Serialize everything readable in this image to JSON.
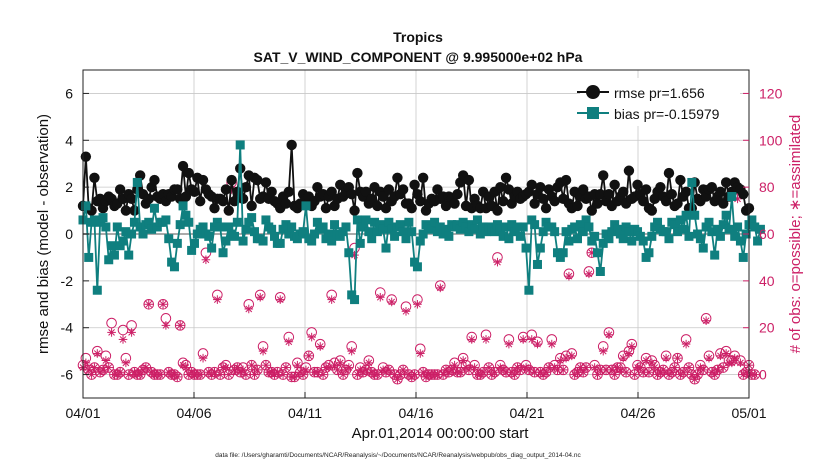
{
  "chart_data": {
    "type": "line",
    "title": "Tropics",
    "subtitle": "SAT_V_WIND_COMPONENT @ 9.995000e+02 hPa",
    "xlabel": "Apr.01,2014 00:00:00 start",
    "ylabel_left": "rmse and bias (model - observation)",
    "ylabel_right": "# of obs: o=possible; ∗=assimilated",
    "footnote": "data file: /Users/gharamti/Documents/NCAR/Reanalysis/~/Documents/NCAR/Reanalysis/webpub/obs_diag_output_2014-04.nc",
    "x_tick_labels": [
      "04/01",
      "04/06",
      "04/11",
      "04/16",
      "04/21",
      "04/26",
      "05/01"
    ],
    "x_tick_days": [
      0,
      5,
      10,
      15,
      20,
      25,
      30
    ],
    "xlim": [
      0,
      30
    ],
    "ylim_left": [
      -7,
      7
    ],
    "yticks_left": [
      -6,
      -4,
      -2,
      0,
      2,
      4,
      6
    ],
    "ylim_right": [
      -10,
      130
    ],
    "yticks_right": [
      0,
      20,
      40,
      60,
      80,
      100,
      120
    ],
    "grid": true,
    "legend_position": "top-right",
    "colors": {
      "rmse": "#111111",
      "bias": "#0f7f7f",
      "obs": "#cc1f66",
      "zero_line": "#aaaaaa",
      "grid": "#c8c8c8"
    },
    "series": [
      {
        "name": "rmse",
        "legend": "rmse pr=1.656",
        "values": [
          1.2,
          3.3,
          1.1,
          1.0,
          2.4,
          1.4,
          1.5,
          1.1,
          1.4,
          1.6,
          1.5,
          1.2,
          1.3,
          1.9,
          1.5,
          1.0,
          1.7,
          1.5,
          1.0,
          1.9,
          2.5,
          1.7,
          1.3,
          1.5,
          2.0,
          2.3,
          1.6,
          1.5,
          1.7,
          1.4,
          1.7,
          1.6,
          1.9,
          1.9,
          1.5,
          2.9,
          1.6,
          2.6,
          1.9,
          1.8,
          2.4,
          1.4,
          2.3,
          1.9,
          1.7,
          1.6,
          1.1,
          1.5,
          1.5,
          1.4,
          1.9,
          1.0,
          2.3,
          1.4,
          1.8,
          2.8,
          1.5,
          2.0,
          2.5,
          1.2,
          2.4,
          2.3,
          1.5,
          1.6,
          2.2,
          1.5,
          1.8,
          1.4,
          1.3,
          1.1,
          1.6,
          1.3,
          1.8,
          3.8,
          1.2,
          1.1,
          1.3,
          1.7,
          1.5,
          1.6,
          1.2,
          1.4,
          2.0,
          1.6,
          1.7,
          1.1,
          1.6,
          1.8,
          1.2,
          1.5,
          2.1,
          1.6,
          1.8,
          2.0,
          1.7,
          1.0,
          2.6,
          1.8,
          1.6,
          1.8,
          1.3,
          1.5,
          2.0,
          1.2,
          1.8,
          1.6,
          1.1,
          1.9,
          1.4,
          1.6,
          2.4,
          1.7,
          1.9,
          1.3,
          1.3,
          1.1,
          2.1,
          1.7,
          1.4,
          2.4,
          1.0,
          1.3,
          1.5,
          1.4,
          1.9,
          1.5,
          1.6,
          1.2,
          1.6,
          1.5,
          1.3,
          1.7,
          2.2,
          2.5,
          1.2,
          2.3,
          1.1,
          1.5,
          1.2,
          1.1,
          1.8,
          1.1,
          1.6,
          1.2,
          1.8,
          1.0,
          2.0,
          1.4,
          2.4,
          1.9,
          1.3,
          1.6,
          1.8,
          1.5,
          1.6,
          1.7,
          1.8,
          2.1,
          1.3,
          1.7,
          2.0,
          1.5,
          1.1,
          1.9,
          1.6,
          1.4,
          2.0,
          2.2,
          1.5,
          2.3,
          1.3,
          1.1,
          1.8,
          1.2,
          1.6,
          1.9,
          1.5,
          1.6,
          1.0,
          1.7,
          1.3,
          1.7,
          2.5,
          1.4,
          1.7,
          1.2,
          2.1,
          1.4,
          1.6,
          1.8,
          1.3,
          2.7,
          1.5,
          1.6,
          2.1,
          1.7,
          1.4,
          1.9,
          1.1,
          1.0,
          1.5,
          1.8,
          2.0,
          1.6,
          1.4,
          2.6,
          1.7,
          1.2,
          1.3,
          2.3,
          1.6,
          1.8,
          1.1,
          1.1,
          2.2,
          1.5,
          1.4,
          1.9,
          1.6,
          1.9,
          2.0,
          1.4,
          1.6,
          1.8,
          1.3,
          2.2,
          1.6,
          1.8,
          2.2,
          2.0,
          1.9,
          1.7,
          1.0,
          1.1
        ]
      },
      {
        "name": "bias",
        "legend": "bias pr=-0.15979",
        "values": [
          0.6,
          1.2,
          -1.0,
          0.5,
          0.6,
          -2.4,
          0.5,
          0.7,
          0.3,
          -1.1,
          -0.5,
          -0.9,
          0.3,
          -0.5,
          -0.3,
          0.1,
          -0.9,
          0.0,
          0.5,
          2.2,
          0.3,
          0.0,
          0.4,
          0.5,
          0.2,
          1.1,
          0.3,
          0.5,
          0.5,
          0.6,
          -0.2,
          -1.2,
          -1.4,
          -0.4,
          0.4,
          1.2,
          0.8,
          0.5,
          -0.7,
          -0.4,
          0.0,
          0.2,
          0.3,
          0.0,
          -0.1,
          -0.6,
          0.3,
          0.5,
          0.3,
          -0.8,
          -0.3,
          0.3,
          0.0,
          -0.1,
          0.5,
          3.8,
          -0.3,
          0.2,
          0.5,
          0.7,
          0.1,
          -0.2,
          -0.2,
          -0.3,
          0.6,
          0.3,
          0.2,
          -0.1,
          -0.4,
          -0.4,
          0.2,
          0.4,
          0.0,
          0.3,
          -0.1,
          -0.2,
          0.0,
          0.1,
          1.2,
          -0.2,
          -0.3,
          0.0,
          0.5,
          0.2,
          0.3,
          -0.2,
          0.0,
          -0.3,
          0.4,
          0.0,
          -0.1,
          0.1,
          0.3,
          -0.8,
          -2.6,
          -2.8,
          0.6,
          -0.4,
          0.3,
          0.6,
          0.1,
          -0.2,
          0.5,
          0.1,
          0.4,
          0.2,
          -0.6,
          0.5,
          0.2,
          -0.1,
          0.3,
          0.4,
          0.1,
          -0.2,
          0.5,
          0.1,
          -1.2,
          -1.4,
          -0.3,
          0.0,
          0.4,
          0.3,
          0.2,
          0.5,
          0.1,
          0.3,
          0.0,
          0.2,
          -0.1,
          0.4,
          0.3,
          0.4,
          0.2,
          0.5,
          0.3,
          0.1,
          0.4,
          0.2,
          0.6,
          0.0,
          0.3,
          0.1,
          0.3,
          0.2,
          0.1,
          0.4,
          0.2,
          -0.1,
          0.3,
          -0.2,
          0.4,
          0.1,
          0.3,
          -0.1,
          0.3,
          -0.6,
          -2.4,
          0.6,
          0.4,
          -1.3,
          -0.6,
          0.1,
          0.5,
          0.3,
          0.3,
          0.1,
          -0.8,
          -1.0,
          -0.8,
          0.1,
          -0.3,
          0.2,
          0.3,
          -0.2,
          0.4,
          0.1,
          0.6,
          0.3,
          -0.3,
          -0.1,
          -0.8,
          -1.6,
          -0.4,
          0.0,
          -0.2,
          0.1,
          0.4,
          0.2,
          0.0,
          -0.2,
          0.3,
          0.1,
          -0.3,
          0.2,
          0.1,
          -0.1,
          -0.3,
          -1.0,
          -0.8,
          -0.1,
          0.3,
          0.5,
          0.2,
          0.1,
          0.1,
          -0.2,
          0.5,
          0.4,
          0.1,
          0.6,
          0.2,
          0.8,
          -0.1,
          2.2,
          0.8,
          0.0,
          -0.2,
          -0.6,
          0.3,
          0.5,
          0.1,
          -0.9,
          0.2,
          -0.1,
          0.4,
          0.8,
          0.2,
          1.6,
          -0.1,
          0.3,
          -0.3,
          -1.0,
          0.0,
          0.4,
          0.6,
          0.3,
          -0.3,
          0.2
        ]
      },
      {
        "name": "possible",
        "marker": "circle",
        "values": [
          4,
          7,
          2,
          0,
          3,
          10,
          1,
          2,
          8,
          3,
          22,
          0,
          0,
          1,
          19,
          7,
          0,
          21,
          1,
          0,
          0,
          2,
          3,
          30,
          1,
          0,
          0,
          0,
          30,
          24,
          1,
          0,
          0,
          -1,
          21,
          5,
          4,
          0,
          1,
          0,
          0,
          0,
          9,
          52,
          1,
          0,
          1,
          34,
          0,
          3,
          4,
          0,
          82,
          2,
          3,
          1,
          3,
          0,
          30,
          4,
          0,
          2,
          34,
          12,
          4,
          1,
          1,
          0,
          1,
          33,
          0,
          3,
          16,
          -1,
          -1,
          5,
          1,
          0,
          3,
          8,
          18,
          1,
          1,
          13,
          0,
          3,
          4,
          34,
          5,
          2,
          6,
          0,
          2,
          4,
          12,
          54,
          0,
          3,
          1,
          2,
          6,
          1,
          0,
          0,
          35,
          3,
          1,
          2,
          32,
          0,
          -2,
          0,
          2,
          29,
          0,
          -1,
          0,
          32,
          11,
          1,
          -1,
          0,
          0,
          0,
          0,
          38,
          0,
          2,
          1,
          2,
          5,
          1,
          1,
          7,
          4,
          2,
          16,
          4,
          0,
          0,
          1,
          17,
          3,
          0,
          1,
          50,
          4,
          2,
          1,
          15,
          1,
          0,
          3,
          2,
          16,
          4,
          2,
          17,
          1,
          14,
          1,
          0,
          1,
          3,
          15,
          4,
          2,
          7,
          2,
          8,
          43,
          9,
          0,
          1,
          3,
          1,
          3,
          44,
          52,
          4,
          0,
          2,
          12,
          2,
          18,
          2,
          0,
          3,
          3,
          8,
          1,
          10,
          13,
          0,
          4,
          3,
          1,
          7,
          1,
          6,
          4,
          0,
          1,
          2,
          8,
          0,
          1,
          3,
          7,
          0,
          1,
          15,
          3,
          0,
          -2,
          0,
          4,
          2,
          24,
          8,
          1,
          0,
          2,
          9,
          3,
          10,
          6,
          6,
          8,
          79,
          6,
          0,
          1,
          4,
          0,
          0
        ],
        "note": "counts in # of obs, paired to rmse/bias timeline (approx., read off right axis)"
      },
      {
        "name": "assimilated",
        "marker": "star",
        "values": [
          3,
          5,
          2,
          0,
          3,
          9,
          1,
          2,
          6,
          3,
          18,
          0,
          0,
          1,
          15,
          5,
          0,
          18,
          1,
          0,
          0,
          2,
          3,
          30,
          1,
          0,
          0,
          0,
          30,
          21,
          1,
          0,
          0,
          -1,
          21,
          4,
          3,
          0,
          1,
          0,
          0,
          0,
          7,
          49,
          1,
          0,
          1,
          32,
          0,
          3,
          3,
          0,
          79,
          2,
          3,
          1,
          2,
          0,
          28,
          4,
          0,
          2,
          33,
          10,
          4,
          1,
          1,
          0,
          1,
          32,
          0,
          3,
          14,
          -1,
          -1,
          4,
          1,
          0,
          2,
          8,
          16,
          1,
          1,
          12,
          0,
          3,
          3,
          32,
          4,
          2,
          5,
          0,
          2,
          3,
          10,
          51,
          0,
          2,
          1,
          2,
          5,
          1,
          0,
          0,
          33,
          2,
          1,
          2,
          31,
          0,
          -2,
          0,
          2,
          27,
          0,
          -1,
          0,
          30,
          9,
          1,
          -1,
          0,
          0,
          0,
          0,
          37,
          0,
          2,
          1,
          2,
          4,
          1,
          1,
          6,
          3,
          2,
          15,
          3,
          0,
          0,
          1,
          15,
          3,
          0,
          1,
          48,
          3,
          2,
          1,
          13,
          1,
          0,
          3,
          2,
          15,
          3,
          2,
          15,
          1,
          13,
          1,
          0,
          1,
          3,
          13,
          3,
          2,
          6,
          2,
          7,
          42,
          8,
          0,
          1,
          3,
          1,
          3,
          43,
          52,
          3,
          0,
          2,
          10,
          2,
          17,
          2,
          0,
          3,
          2,
          7,
          1,
          9,
          12,
          0,
          3,
          3,
          1,
          6,
          1,
          5,
          3,
          0,
          1,
          2,
          7,
          0,
          1,
          3,
          7,
          0,
          1,
          13,
          3,
          0,
          -2,
          0,
          3,
          2,
          23,
          7,
          1,
          0,
          2,
          8,
          3,
          9,
          5,
          5,
          7,
          75,
          5,
          0,
          1,
          4,
          0,
          0
        ]
      }
    ]
  }
}
